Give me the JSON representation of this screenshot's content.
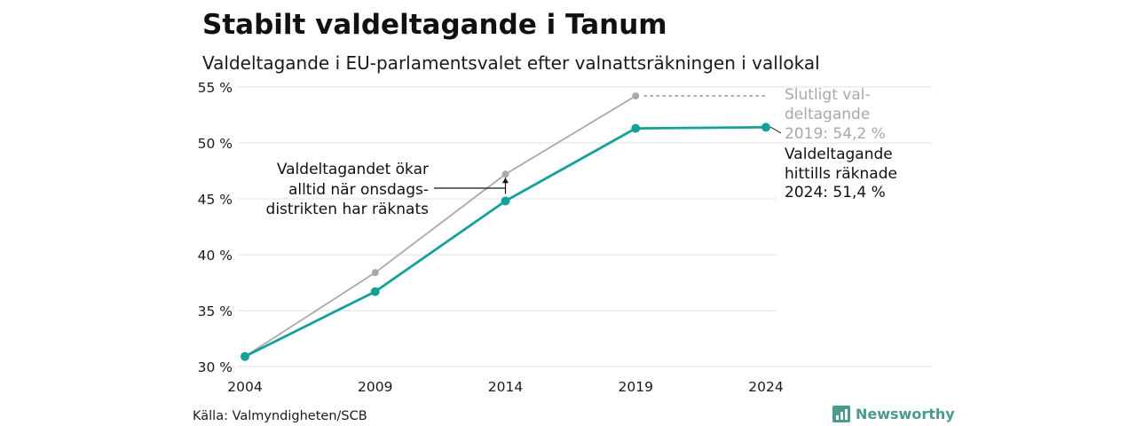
{
  "title": "Stabilt valdeltagande i Tanum",
  "subtitle": "Valdeltagande i EU-parlamentsvalet efter valnattsräkningen i vallokal",
  "source": "Källa: Valmyndigheten/SCB",
  "brand": "Newsworthy",
  "colors": {
    "counted": "#14a298",
    "final": "#a9a9a9",
    "brand": "#4a9b8e"
  },
  "chart_data": {
    "type": "line",
    "x": [
      2004,
      2009,
      2014,
      2019,
      2024
    ],
    "y_tick_labels": [
      "30 %",
      "35 %",
      "40 %",
      "45 %",
      "50 %",
      "55 %"
    ],
    "y_ticks": [
      30,
      35,
      40,
      45,
      50,
      55
    ],
    "ylim": [
      30,
      55
    ],
    "grid": true,
    "series": [
      {
        "key": "final",
        "color": "#a9a9a9",
        "values": [
          30.9,
          38.4,
          47.2,
          54.2,
          null
        ]
      },
      {
        "key": "counted",
        "color": "#14a298",
        "values": [
          30.9,
          36.7,
          44.8,
          51.3,
          51.4
        ]
      }
    ],
    "annotations": {
      "final": [
        "Slutligt val-",
        "deltagande",
        "2019: 54,2 %"
      ],
      "counted": [
        "Valdeltagande",
        "hittills räknade",
        "2024: 51,4 %"
      ],
      "onsdag": [
        "Valdeltagandet ökar",
        "alltid när onsdags-",
        "distrikten har räknats"
      ]
    }
  }
}
